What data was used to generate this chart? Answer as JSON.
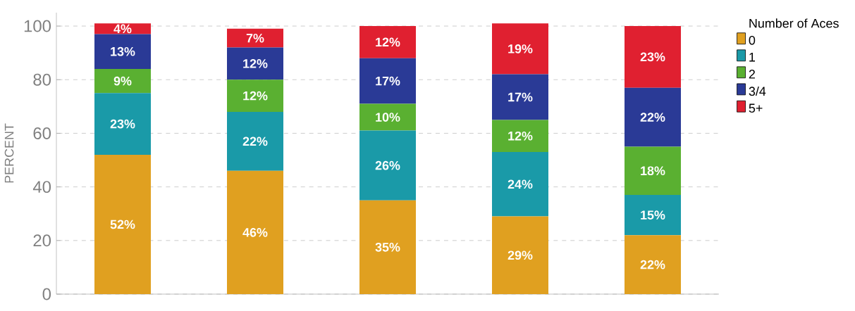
{
  "chart_data": {
    "type": "bar",
    "stacked": true,
    "ylabel": "PERCENT",
    "legend_title": "Number of Aces",
    "legend": "top right",
    "grid": "y",
    "categories": [
      null,
      null,
      null,
      null,
      null
    ],
    "ylim": [
      0,
      105
    ],
    "yticks": [
      0,
      20,
      40,
      60,
      80,
      100
    ],
    "series": [
      {
        "name": "0",
        "color": "#e0a020",
        "values": [
          52,
          46,
          35,
          29,
          22
        ],
        "value_labels": [
          "52%",
          "46%",
          "35%",
          "29%",
          "22%"
        ]
      },
      {
        "name": "1",
        "color": "#1a9aa8",
        "values": [
          23,
          22,
          26,
          24,
          15
        ],
        "value_labels": [
          "23%",
          "22%",
          "26%",
          "24%",
          "15%"
        ]
      },
      {
        "name": "2",
        "color": "#5ab031",
        "values": [
          9,
          12,
          10,
          12,
          18
        ],
        "value_labels": [
          "9%",
          "12%",
          "10%",
          "12%",
          "18%"
        ]
      },
      {
        "name": "3/4",
        "color": "#2a3a96",
        "values": [
          13,
          12,
          17,
          17,
          22
        ],
        "value_labels": [
          "13%",
          "12%",
          "17%",
          "17%",
          "22%"
        ]
      },
      {
        "name": "5+",
        "color": "#e02030",
        "values": [
          4,
          7,
          12,
          19,
          23
        ],
        "value_labels": [
          "4%",
          "7%",
          "12%",
          "19%",
          "23%"
        ]
      }
    ]
  }
}
